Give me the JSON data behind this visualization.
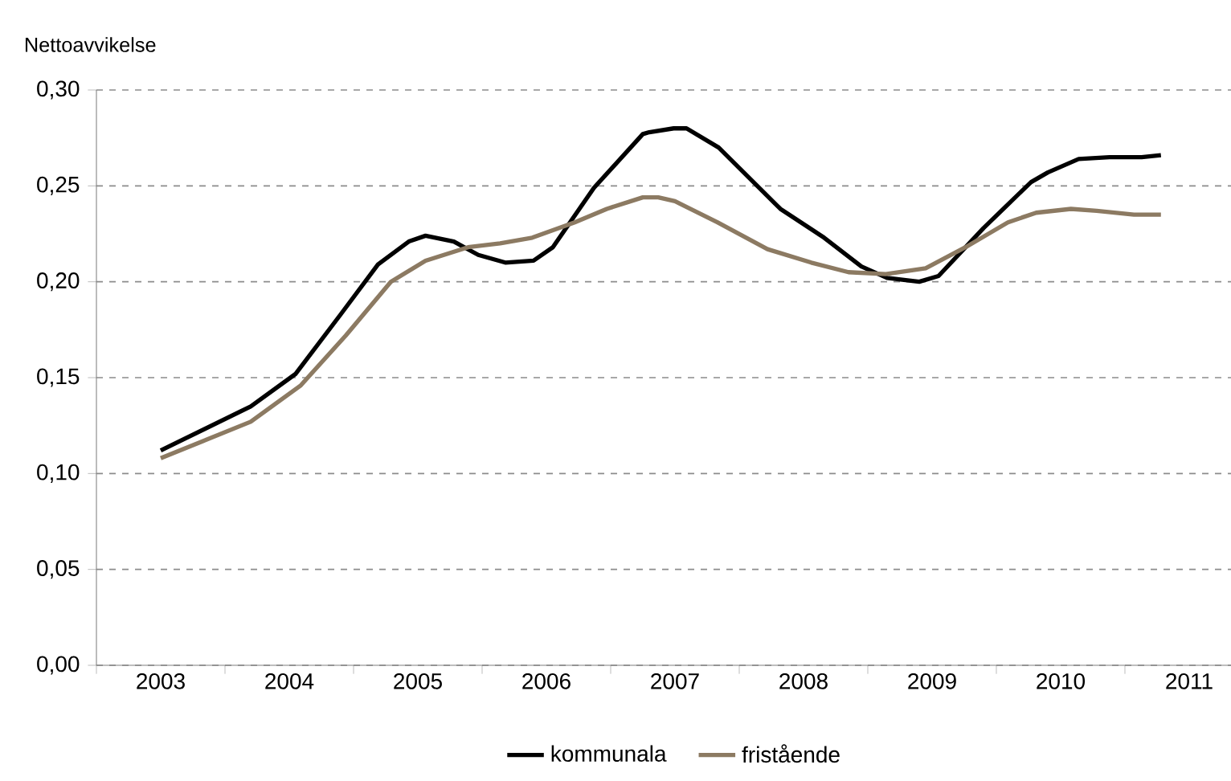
{
  "chart_data": {
    "type": "line",
    "ylabel": "Nettoavvikelse",
    "xlim": [
      2002.5,
      2011.5
    ],
    "xticks": [
      {
        "value": 2002.5,
        "label": null
      },
      {
        "value": 2003,
        "label": "2003"
      },
      {
        "value": 2003.5,
        "label": null
      },
      {
        "value": 2004,
        "label": "2004"
      },
      {
        "value": 2004.5,
        "label": null
      },
      {
        "value": 2005,
        "label": "2005"
      },
      {
        "value": 2005.5,
        "label": null
      },
      {
        "value": 2006,
        "label": "2006"
      },
      {
        "value": 2006.5,
        "label": null
      },
      {
        "value": 2007,
        "label": "2007"
      },
      {
        "value": 2007.5,
        "label": null
      },
      {
        "value": 2008,
        "label": "2008"
      },
      {
        "value": 2008.5,
        "label": null
      },
      {
        "value": 2009,
        "label": "2009"
      },
      {
        "value": 2009.5,
        "label": null
      },
      {
        "value": 2010,
        "label": "2010"
      },
      {
        "value": 2010.5,
        "label": null
      },
      {
        "value": 2011,
        "label": "2011"
      },
      {
        "value": 2011.5,
        "label": null
      }
    ],
    "ylim": [
      0,
      0.3
    ],
    "yticks": [
      {
        "value": 0,
        "label": "0,00"
      },
      {
        "value": 0.05,
        "label": "0,05"
      },
      {
        "value": 0.1,
        "label": "0,10"
      },
      {
        "value": 0.15,
        "label": "0,15"
      },
      {
        "value": 0.2,
        "label": "0,20"
      },
      {
        "value": 0.25,
        "label": "0,25"
      },
      {
        "value": 0.3,
        "label": "0,30"
      }
    ],
    "grid": "y",
    "legend": "bottom",
    "series": [
      {
        "name": "kommunala",
        "color": "#000000",
        "x": [
          2003.0,
          2003.7,
          2004.05,
          2004.4,
          2004.69,
          2004.93,
          2005.06,
          2005.28,
          2005.47,
          2005.68,
          2005.9,
          2006.05,
          2006.37,
          2006.75,
          2006.8,
          2006.99,
          2007.09,
          2007.34,
          2007.82,
          2008.16,
          2008.45,
          2008.65,
          2008.9,
          2009.05,
          2009.4,
          2009.77,
          2009.9,
          2010.14,
          2010.38,
          2010.63,
          2010.78
        ],
        "values": [
          0.112,
          0.135,
          0.152,
          0.183,
          0.209,
          0.221,
          0.224,
          0.221,
          0.214,
          0.21,
          0.211,
          0.218,
          0.249,
          0.277,
          0.278,
          0.28,
          0.28,
          0.27,
          0.238,
          0.223,
          0.208,
          0.202,
          0.2,
          0.203,
          0.228,
          0.252,
          0.257,
          0.264,
          0.265,
          0.265,
          0.266
        ]
      },
      {
        "name": "fristående",
        "color": "#8c7a62",
        "x": [
          2003.0,
          2003.7,
          2004.09,
          2004.44,
          2004.79,
          2005.06,
          2005.39,
          2005.64,
          2005.89,
          2006.22,
          2006.47,
          2006.75,
          2006.87,
          2007.0,
          2007.33,
          2007.72,
          2008.06,
          2008.35,
          2008.64,
          2008.95,
          2009.26,
          2009.59,
          2009.81,
          2010.08,
          2010.28,
          2010.57,
          2010.78
        ],
        "values": [
          0.108,
          0.127,
          0.146,
          0.172,
          0.2,
          0.211,
          0.218,
          0.22,
          0.223,
          0.231,
          0.238,
          0.244,
          0.244,
          0.242,
          0.231,
          0.217,
          0.21,
          0.205,
          0.204,
          0.207,
          0.218,
          0.231,
          0.236,
          0.238,
          0.237,
          0.235,
          0.235
        ]
      }
    ]
  }
}
